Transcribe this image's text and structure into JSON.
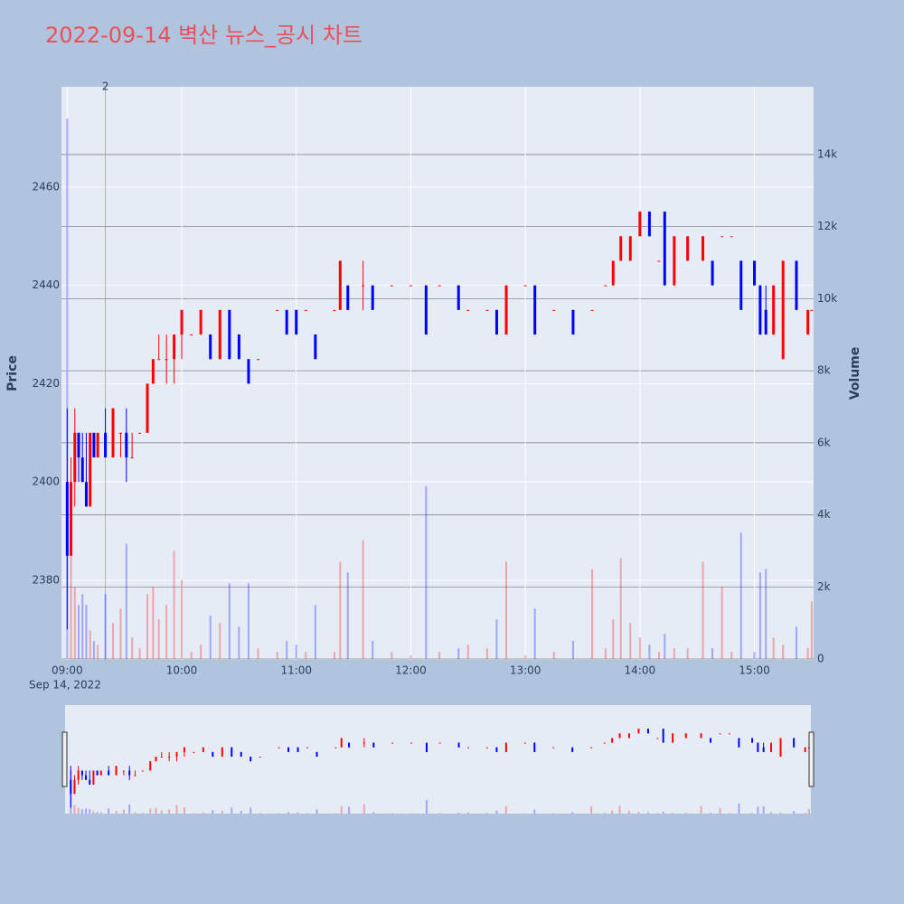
{
  "chart_data": {
    "type": "candlestick",
    "title": "2022-09-14 벽산 뉴스_공시 차트",
    "ylabel": "Price",
    "y2label": "Volume",
    "x_date_label": "Sep 14, 2022",
    "increasing_color": "#ff0000",
    "decreasing_color": "#0000ff",
    "xlim": [
      "08:57",
      "15:31"
    ],
    "xticks": [
      "09:00",
      "10:00",
      "11:00",
      "12:00",
      "13:00",
      "14:00",
      "15:00"
    ],
    "ylim": [
      2363.8,
      2480.4
    ],
    "yticks": [
      2380,
      2400,
      2420,
      2440,
      2460
    ],
    "y2lim": [
      0,
      15880
    ],
    "y2ticks": [
      0,
      {
        "value": 2000,
        "label": "2k"
      },
      {
        "value": 4000,
        "label": "4k"
      },
      {
        "value": 6000,
        "label": "6k"
      },
      {
        "value": 8000,
        "label": "8k"
      },
      {
        "value": 10000,
        "label": "10k"
      },
      {
        "value": 12000,
        "label": "12k"
      },
      {
        "value": 14000,
        "label": "14k"
      }
    ],
    "annotations": [
      {
        "x": "09:20",
        "text": "2"
      }
    ],
    "x": [
      "09:00",
      "09:02",
      "09:04",
      "09:06",
      "09:08",
      "09:10",
      "09:12",
      "09:14",
      "09:16",
      "09:20",
      "09:24",
      "09:28",
      "09:31",
      "09:34",
      "09:38",
      "09:42",
      "09:45",
      "09:48",
      "09:52",
      "09:56",
      "10:00",
      "10:05",
      "10:10",
      "10:15",
      "10:20",
      "10:25",
      "10:30",
      "10:35",
      "10:40",
      "10:50",
      "10:55",
      "11:00",
      "11:05",
      "11:10",
      "11:20",
      "11:23",
      "11:27",
      "11:35",
      "11:40",
      "11:50",
      "12:00",
      "12:08",
      "12:15",
      "12:25",
      "12:30",
      "12:40",
      "12:45",
      "12:50",
      "13:00",
      "13:05",
      "13:15",
      "13:25",
      "13:35",
      "13:42",
      "13:46",
      "13:50",
      "13:55",
      "14:00",
      "14:05",
      "14:10",
      "14:13",
      "14:18",
      "14:25",
      "14:33",
      "14:38",
      "14:43",
      "14:48",
      "14:53",
      "15:00",
      "15:03",
      "15:06",
      "15:10",
      "15:15",
      "15:22",
      "15:28",
      "15:30"
    ],
    "open": [
      2400,
      2385,
      2400,
      2410,
      2405,
      2400,
      2395,
      2410,
      2405,
      2410,
      2405,
      2410,
      2410,
      2405,
      2410,
      2410,
      2420,
      2425,
      2425,
      2425,
      2430,
      2430,
      2430,
      2430,
      2425,
      2435,
      2430,
      2425,
      2425,
      2435,
      2435,
      2435,
      2435,
      2430,
      2435,
      2435,
      2440,
      2440,
      2440,
      2440,
      2440,
      2440,
      2440,
      2440,
      2435,
      2435,
      2435,
      2430,
      2440,
      2440,
      2435,
      2435,
      2435,
      2440,
      2440,
      2445,
      2445,
      2450,
      2455,
      2445,
      2455,
      2440,
      2445,
      2445,
      2445,
      2450,
      2450,
      2445,
      2445,
      2440,
      2435,
      2430,
      2425,
      2445,
      2430,
      2435
    ],
    "high": [
      2415,
      2405,
      2415,
      2410,
      2410,
      2410,
      2410,
      2410,
      2410,
      2415,
      2415,
      2410,
      2415,
      2410,
      2410,
      2420,
      2425,
      2430,
      2430,
      2430,
      2435,
      2430,
      2435,
      2430,
      2435,
      2435,
      2430,
      2425,
      2425,
      2435,
      2435,
      2435,
      2435,
      2430,
      2435,
      2445,
      2440,
      2445,
      2440,
      2440,
      2440,
      2440,
      2440,
      2440,
      2435,
      2435,
      2435,
      2440,
      2440,
      2440,
      2435,
      2435,
      2435,
      2440,
      2445,
      2450,
      2450,
      2455,
      2455,
      2445,
      2455,
      2450,
      2450,
      2450,
      2445,
      2450,
      2450,
      2445,
      2445,
      2440,
      2440,
      2440,
      2445,
      2445,
      2435,
      2435
    ],
    "low": [
      2370,
      2385,
      2395,
      2400,
      2400,
      2395,
      2395,
      2405,
      2405,
      2405,
      2405,
      2405,
      2400,
      2405,
      2410,
      2410,
      2420,
      2425,
      2420,
      2420,
      2425,
      2430,
      2430,
      2425,
      2425,
      2425,
      2425,
      2420,
      2425,
      2435,
      2430,
      2430,
      2435,
      2425,
      2435,
      2435,
      2435,
      2435,
      2435,
      2440,
      2440,
      2430,
      2440,
      2435,
      2435,
      2435,
      2430,
      2430,
      2440,
      2430,
      2435,
      2430,
      2435,
      2440,
      2440,
      2445,
      2445,
      2450,
      2450,
      2445,
      2440,
      2440,
      2445,
      2445,
      2440,
      2450,
      2450,
      2435,
      2440,
      2430,
      2430,
      2430,
      2425,
      2435,
      2430,
      2435
    ],
    "close": [
      2385,
      2400,
      2410,
      2405,
      2400,
      2395,
      2410,
      2405,
      2410,
      2405,
      2415,
      2410,
      2405,
      2405,
      2410,
      2420,
      2425,
      2425,
      2425,
      2430,
      2435,
      2430,
      2435,
      2425,
      2435,
      2425,
      2425,
      2420,
      2425,
      2435,
      2430,
      2430,
      2435,
      2425,
      2435,
      2445,
      2435,
      2440,
      2435,
      2440,
      2440,
      2430,
      2440,
      2435,
      2435,
      2435,
      2430,
      2440,
      2440,
      2430,
      2435,
      2430,
      2435,
      2440,
      2445,
      2450,
      2450,
      2455,
      2450,
      2445,
      2440,
      2450,
      2450,
      2450,
      2440,
      2450,
      2450,
      2435,
      2440,
      2430,
      2430,
      2440,
      2445,
      2435,
      2435,
      2435
    ],
    "volume": [
      15000,
      3000,
      2000,
      1500,
      1800,
      1500,
      800,
      500,
      400,
      1800,
      1000,
      1400,
      3200,
      600,
      300,
      1800,
      2000,
      1100,
      1500,
      3000,
      2200,
      200,
      400,
      1200,
      1000,
      2100,
      900,
      2100,
      300,
      200,
      500,
      400,
      200,
      1500,
      200,
      2700,
      2400,
      3300,
      500,
      200,
      100,
      4800,
      200,
      300,
      400,
      300,
      1100,
      2700,
      100,
      1400,
      200,
      500,
      2500,
      300,
      1100,
      2800,
      1000,
      600,
      400,
      200,
      700,
      300,
      300,
      2700,
      300,
      2000,
      200,
      3500,
      200,
      2400,
      2500,
      600,
      400,
      900,
      300,
      1600
    ]
  }
}
